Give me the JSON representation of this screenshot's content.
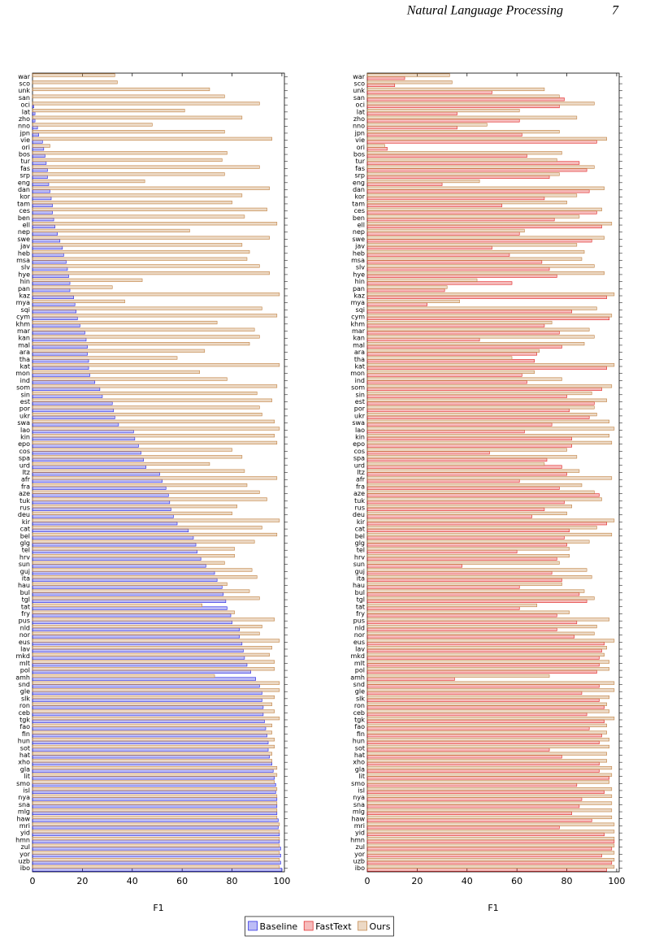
{
  "header": {
    "title": "Natural Language Processing",
    "page_number": 7
  },
  "chart_data": [
    {
      "type": "bar",
      "orientation": "horizontal",
      "xlabel": "F1",
      "categories": [
        "war",
        "sco",
        "unk",
        "san",
        "oci",
        "lat",
        "zho",
        "nno",
        "jpn",
        "vie",
        "ori",
        "bos",
        "tur",
        "fas",
        "srp",
        "eng",
        "dan",
        "kor",
        "tam",
        "ces",
        "ben",
        "ell",
        "nep",
        "swe",
        "jav",
        "heb",
        "msa",
        "slv",
        "hye",
        "hin",
        "pan",
        "kaz",
        "mya",
        "sqi",
        "cym",
        "khm",
        "mar",
        "kan",
        "mal",
        "ara",
        "tha",
        "kat",
        "mon",
        "ind",
        "som",
        "sin",
        "est",
        "por",
        "ukr",
        "swa",
        "lao",
        "kin",
        "epo",
        "cos",
        "spa",
        "urd",
        "ltz",
        "afr",
        "fra",
        "aze",
        "tuk",
        "rus",
        "deu",
        "kir",
        "cat",
        "bel",
        "glg",
        "tel",
        "hrv",
        "sun",
        "guj",
        "ita",
        "hau",
        "bul",
        "tgl",
        "tat",
        "fry",
        "pus",
        "nld",
        "nor",
        "eus",
        "lav",
        "mkd",
        "mlt",
        "pol",
        "amh",
        "snd",
        "gle",
        "slk",
        "ron",
        "ceb",
        "tgk",
        "fao",
        "fin",
        "hun",
        "sot",
        "hat",
        "xho",
        "gla",
        "lit",
        "smo",
        "isl",
        "nya",
        "sna",
        "mlg",
        "haw",
        "mri",
        "yid",
        "hmn",
        "zul",
        "yor",
        "uzb",
        "ibo"
      ],
      "series": [
        {
          "name": "Baseline",
          "color": "#2020e0",
          "values": [
            0,
            0,
            0,
            0,
            0.5,
            1,
            1,
            2,
            2.5,
            4,
            4.5,
            5,
            5.5,
            6,
            6,
            6.5,
            7,
            7.5,
            8,
            8,
            8.5,
            9,
            10,
            11,
            12,
            12.5,
            13.5,
            14,
            14.5,
            15,
            15,
            16.5,
            17,
            17.5,
            18,
            19,
            21,
            21.5,
            22,
            22,
            22.5,
            22.5,
            23,
            25,
            27,
            28,
            32,
            32.5,
            33,
            34.5,
            40.5,
            41,
            42.5,
            43.5,
            44.5,
            45.5,
            51,
            52,
            53.5,
            54.5,
            55,
            55.5,
            56.5,
            58,
            62.5,
            64.5,
            65.5,
            66,
            67.5,
            69.5,
            73,
            74,
            76,
            76.5,
            77.5,
            78,
            79.5,
            80,
            83,
            83,
            84,
            84.5,
            85,
            86,
            87.5,
            89.5,
            91,
            92,
            92,
            92.5,
            92.5,
            93,
            93.5,
            94,
            94.5,
            94.5,
            95,
            96,
            96.5,
            97,
            97.5,
            97.5,
            98,
            98,
            98,
            98.5,
            98.5,
            99,
            99,
            99.5,
            99.5,
            99.5,
            100
          ]
        },
        {
          "name": "Ours",
          "color": "#c08040",
          "values": [
            33,
            34,
            71,
            77,
            91,
            61,
            84,
            48,
            77,
            96,
            7,
            78,
            76,
            91,
            77,
            45,
            95,
            84,
            80,
            94,
            85,
            98,
            63,
            95,
            84,
            87,
            86,
            91,
            95,
            44,
            32,
            99,
            37,
            92,
            98,
            74,
            89,
            91,
            87,
            69,
            58,
            99,
            67,
            78,
            98,
            90,
            96,
            91,
            92,
            97,
            99,
            97,
            98,
            80,
            84,
            71,
            85,
            98,
            86,
            91,
            94,
            82,
            80,
            99,
            92,
            98,
            89,
            81,
            81,
            77,
            88,
            90,
            78,
            87,
            91,
            68,
            81,
            97,
            92,
            91,
            99,
            96,
            95,
            97,
            97,
            73,
            99,
            99,
            97,
            96,
            97,
            99,
            96,
            96,
            97,
            97,
            96,
            96,
            98,
            98,
            97,
            98,
            98,
            98,
            98,
            98,
            99,
            99,
            99,
            99,
            99,
            99,
            99
          ]
        }
      ],
      "xlim": [
        0,
        101
      ],
      "xticks": [
        0,
        20,
        40,
        60,
        80,
        100
      ]
    },
    {
      "type": "bar",
      "orientation": "horizontal",
      "xlabel": "F1",
      "categories": [
        "war",
        "sco",
        "unk",
        "san",
        "oci",
        "lat",
        "zho",
        "nno",
        "jpn",
        "vie",
        "ori",
        "bos",
        "tur",
        "fas",
        "srp",
        "eng",
        "dan",
        "kor",
        "tam",
        "ces",
        "ben",
        "ell",
        "nep",
        "swe",
        "jav",
        "heb",
        "msa",
        "slv",
        "hye",
        "hin",
        "pan",
        "kaz",
        "mya",
        "sqi",
        "cym",
        "khm",
        "mar",
        "kan",
        "mal",
        "ara",
        "tha",
        "kat",
        "mon",
        "ind",
        "som",
        "sin",
        "est",
        "por",
        "ukr",
        "swa",
        "lao",
        "kin",
        "epo",
        "cos",
        "spa",
        "urd",
        "ltz",
        "afr",
        "fra",
        "aze",
        "tuk",
        "rus",
        "deu",
        "kir",
        "cat",
        "bel",
        "glg",
        "tel",
        "hrv",
        "sun",
        "guj",
        "ita",
        "hau",
        "bul",
        "tgl",
        "tat",
        "fry",
        "pus",
        "nld",
        "nor",
        "eus",
        "lav",
        "mkd",
        "mlt",
        "pol",
        "amh",
        "snd",
        "gle",
        "slk",
        "ron",
        "ceb",
        "tgk",
        "fao",
        "fin",
        "hun",
        "sot",
        "hat",
        "xho",
        "gla",
        "lit",
        "smo",
        "isl",
        "nya",
        "sna",
        "mlg",
        "haw",
        "mri",
        "yid",
        "hmn",
        "zul",
        "yor",
        "uzb",
        "ibo"
      ],
      "series": [
        {
          "name": "FastText",
          "color": "#e02020",
          "values": [
            15,
            11,
            50,
            79,
            77,
            36,
            61,
            36,
            62,
            92,
            8,
            64,
            85,
            88,
            73,
            30,
            89,
            71,
            54,
            92,
            75,
            94,
            61,
            90,
            50,
            57,
            70,
            73,
            76,
            58,
            31,
            96,
            24,
            82,
            97,
            71,
            77,
            45,
            78,
            68,
            67,
            96,
            62,
            64,
            94,
            80,
            91,
            81,
            89,
            74,
            63,
            82,
            82,
            49,
            72,
            78,
            80,
            61,
            77,
            93,
            79,
            71,
            66,
            96,
            81,
            79,
            80,
            60,
            76,
            38,
            74,
            78,
            61,
            85,
            88,
            61,
            76,
            84,
            76,
            83,
            95,
            94,
            93,
            93,
            92,
            35,
            93,
            86,
            93,
            95,
            88,
            95,
            89,
            94,
            93,
            73,
            78,
            93,
            93,
            97,
            84,
            95,
            86,
            85,
            82,
            90,
            77,
            95,
            99,
            98,
            94,
            98,
            96
          ]
        },
        {
          "name": "Ours",
          "color": "#c08040",
          "values": [
            33,
            34,
            71,
            77,
            91,
            61,
            84,
            48,
            77,
            96,
            7,
            78,
            76,
            91,
            77,
            45,
            95,
            84,
            80,
            94,
            85,
            98,
            63,
            95,
            84,
            87,
            86,
            91,
            95,
            44,
            32,
            99,
            37,
            92,
            98,
            74,
            89,
            91,
            87,
            69,
            58,
            99,
            67,
            78,
            98,
            90,
            96,
            91,
            92,
            97,
            99,
            97,
            98,
            80,
            84,
            71,
            85,
            98,
            86,
            91,
            94,
            82,
            80,
            99,
            92,
            98,
            89,
            81,
            81,
            77,
            88,
            90,
            78,
            87,
            91,
            68,
            81,
            97,
            92,
            91,
            99,
            96,
            95,
            97,
            97,
            73,
            99,
            99,
            97,
            96,
            97,
            99,
            96,
            96,
            97,
            97,
            96,
            96,
            98,
            98,
            97,
            98,
            98,
            98,
            98,
            98,
            99,
            99,
            99,
            99,
            99,
            99,
            99
          ]
        }
      ],
      "xlim": [
        0,
        101
      ],
      "xticks": [
        0,
        20,
        40,
        60,
        80,
        100
      ]
    }
  ]
}
